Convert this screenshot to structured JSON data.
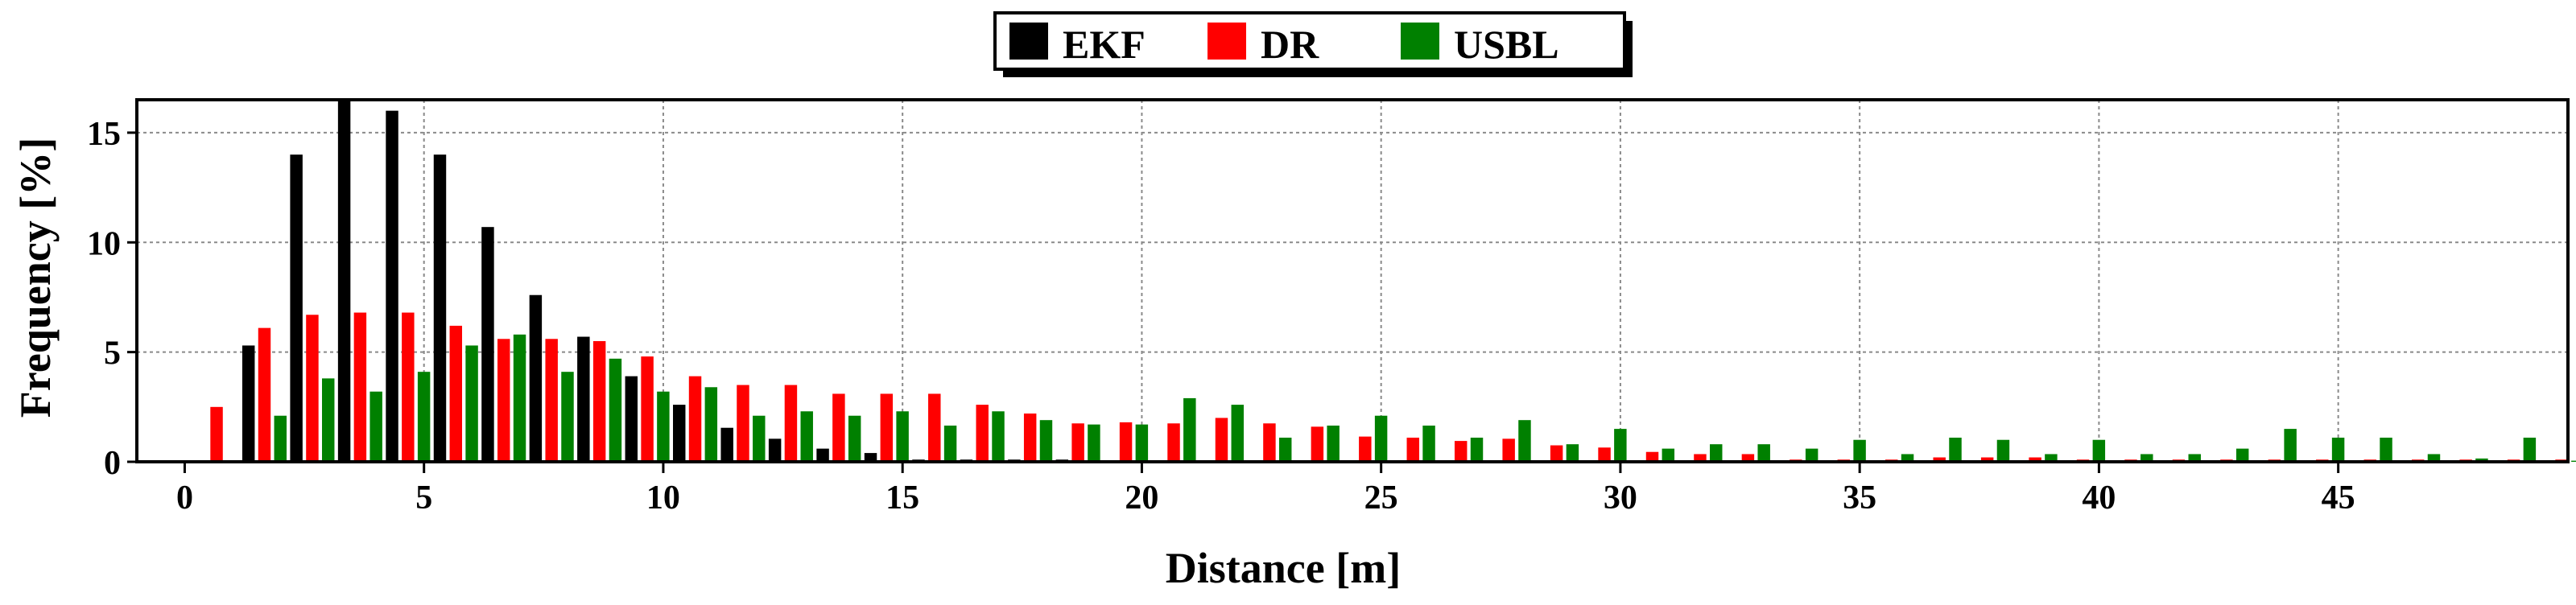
{
  "chart_data": {
    "type": "bar",
    "xlabel": "Distance [m]",
    "ylabel": "Frequency [%]",
    "xlim": [
      -1,
      49.8
    ],
    "ylim": [
      0,
      16.5
    ],
    "xticks": [
      0,
      5,
      10,
      15,
      20,
      25,
      30,
      35,
      40,
      45
    ],
    "yticks": [
      0,
      5,
      10,
      15
    ],
    "grid": true,
    "legend_position": "top-center",
    "bar_offset": 1,
    "series": [
      {
        "name": "EKF",
        "color": "#000000",
        "values": [
          [
            0,
            0.05
          ],
          [
            1,
            5.3
          ],
          [
            2,
            14.0
          ],
          [
            3,
            16.5
          ],
          [
            4,
            16.0
          ],
          [
            5,
            14.0
          ],
          [
            6,
            10.7
          ],
          [
            7,
            7.6
          ],
          [
            8,
            5.7
          ],
          [
            9,
            3.9
          ],
          [
            10,
            2.6
          ],
          [
            11,
            1.55
          ],
          [
            12,
            1.05
          ],
          [
            13,
            0.6
          ],
          [
            14,
            0.4
          ],
          [
            15,
            0.1
          ],
          [
            16,
            0.1
          ],
          [
            17,
            0.1
          ],
          [
            18,
            0.1
          ],
          [
            19,
            0.05
          ],
          [
            20,
            0.05
          ],
          [
            21,
            0.05
          ],
          [
            22,
            0.05
          ],
          [
            23,
            0.05
          ],
          [
            24,
            0.05
          ],
          [
            25,
            0.05
          ],
          [
            26,
            0.05
          ],
          [
            27,
            0.05
          ],
          [
            28,
            0.05
          ],
          [
            29,
            0.05
          ],
          [
            30,
            0.05
          ],
          [
            31,
            0.05
          ],
          [
            32,
            0.05
          ],
          [
            33,
            0.05
          ],
          [
            34,
            0.05
          ],
          [
            35,
            0.05
          ],
          [
            36,
            0.05
          ],
          [
            37,
            0.05
          ],
          [
            38,
            0.05
          ],
          [
            39,
            0.05
          ],
          [
            40,
            0.05
          ],
          [
            41,
            0.05
          ],
          [
            42,
            0.05
          ],
          [
            43,
            0.05
          ],
          [
            44,
            0.05
          ],
          [
            45,
            0.05
          ],
          [
            46,
            0.05
          ],
          [
            47,
            0.05
          ],
          [
            48,
            0.05
          ],
          [
            49,
            0.05
          ]
        ]
      },
      {
        "name": "DR",
        "color": "#ff0000",
        "values": [
          [
            0,
            2.5
          ],
          [
            1,
            6.1
          ],
          [
            2,
            6.7
          ],
          [
            3,
            6.8
          ],
          [
            4,
            6.8
          ],
          [
            5,
            6.2
          ],
          [
            6,
            5.6
          ],
          [
            7,
            5.6
          ],
          [
            8,
            5.5
          ],
          [
            9,
            4.8
          ],
          [
            10,
            3.9
          ],
          [
            11,
            3.5
          ],
          [
            12,
            3.5
          ],
          [
            13,
            3.1
          ],
          [
            14,
            3.1
          ],
          [
            15,
            3.1
          ],
          [
            16,
            2.6
          ],
          [
            17,
            2.2
          ],
          [
            18,
            1.75
          ],
          [
            19,
            1.8
          ],
          [
            20,
            1.75
          ],
          [
            21,
            2.0
          ],
          [
            22,
            1.75
          ],
          [
            23,
            1.6
          ],
          [
            24,
            1.15
          ],
          [
            25,
            1.1
          ],
          [
            26,
            0.95
          ],
          [
            27,
            1.05
          ],
          [
            28,
            0.75
          ],
          [
            29,
            0.65
          ],
          [
            30,
            0.45
          ],
          [
            31,
            0.35
          ],
          [
            32,
            0.35
          ],
          [
            33,
            0.1
          ],
          [
            34,
            0.1
          ],
          [
            35,
            0.1
          ],
          [
            36,
            0.2
          ],
          [
            37,
            0.2
          ],
          [
            38,
            0.2
          ],
          [
            39,
            0.1
          ],
          [
            40,
            0.1
          ],
          [
            41,
            0.1
          ],
          [
            42,
            0.1
          ],
          [
            43,
            0.1
          ],
          [
            44,
            0.1
          ],
          [
            45,
            0.1
          ],
          [
            46,
            0.1
          ],
          [
            47,
            0.1
          ],
          [
            48,
            0.1
          ],
          [
            49,
            0.1
          ]
        ]
      },
      {
        "name": "USBL",
        "color": "#008000",
        "values": [
          [
            0,
            0.05
          ],
          [
            1,
            2.1
          ],
          [
            2,
            3.8
          ],
          [
            3,
            3.2
          ],
          [
            4,
            4.1
          ],
          [
            5,
            5.3
          ],
          [
            6,
            5.8
          ],
          [
            7,
            4.1
          ],
          [
            8,
            4.7
          ],
          [
            9,
            3.2
          ],
          [
            10,
            3.4
          ],
          [
            11,
            2.1
          ],
          [
            12,
            2.3
          ],
          [
            13,
            2.1
          ],
          [
            14,
            2.3
          ],
          [
            15,
            1.65
          ],
          [
            16,
            2.3
          ],
          [
            17,
            1.9
          ],
          [
            18,
            1.7
          ],
          [
            19,
            1.7
          ],
          [
            20,
            2.9
          ],
          [
            21,
            2.6
          ],
          [
            22,
            1.1
          ],
          [
            23,
            1.65
          ],
          [
            24,
            2.1
          ],
          [
            25,
            1.65
          ],
          [
            26,
            1.1
          ],
          [
            27,
            1.9
          ],
          [
            28,
            0.8
          ],
          [
            29,
            1.5
          ],
          [
            30,
            0.6
          ],
          [
            31,
            0.8
          ],
          [
            32,
            0.8
          ],
          [
            33,
            0.6
          ],
          [
            34,
            1.0
          ],
          [
            35,
            0.35
          ],
          [
            36,
            1.1
          ],
          [
            37,
            1.0
          ],
          [
            38,
            0.35
          ],
          [
            39,
            1.0
          ],
          [
            40,
            0.35
          ],
          [
            41,
            0.35
          ],
          [
            42,
            0.6
          ],
          [
            43,
            1.5
          ],
          [
            44,
            1.1
          ],
          [
            45,
            1.1
          ],
          [
            46,
            0.35
          ],
          [
            47,
            0.15
          ],
          [
            48,
            1.1
          ],
          [
            49,
            0.05
          ]
        ]
      }
    ]
  }
}
